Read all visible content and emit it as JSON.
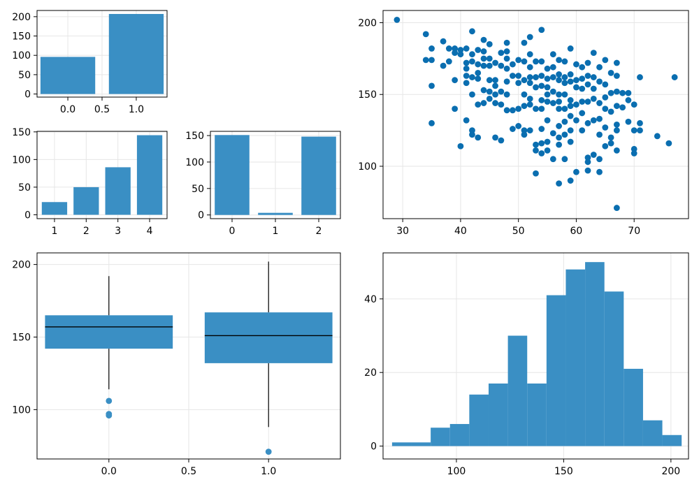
{
  "colors": {
    "bar": "#3a8fc4",
    "point": "#0a6eb0"
  },
  "chart_data": [
    {
      "id": "sex-bar",
      "type": "bar",
      "x": [
        0,
        1
      ],
      "values": [
        96,
        207
      ],
      "xlim": [
        -0.45,
        1.45
      ],
      "ylim": [
        -8,
        216
      ],
      "xticks": [
        0.0,
        0.5,
        1.0
      ],
      "xtick_labels": [
        "0.0",
        "0.5",
        "1.0"
      ],
      "yticks": [
        0,
        50,
        100,
        150,
        200
      ],
      "ytick_labels": [
        "0",
        "50",
        "100",
        "150",
        "200"
      ],
      "bar_width": 0.8,
      "grid": true
    },
    {
      "id": "cp-bar",
      "type": "bar",
      "x": [
        1,
        2,
        3,
        4
      ],
      "values": [
        23,
        50,
        86,
        144
      ],
      "xlim": [
        0.45,
        4.55
      ],
      "ylim": [
        -7,
        151
      ],
      "xticks": [
        1,
        2,
        3,
        4
      ],
      "xtick_labels": [
        "1",
        "2",
        "3",
        "4"
      ],
      "yticks": [
        0,
        50,
        100,
        150
      ],
      "ytick_labels": [
        "0",
        "50",
        "100",
        "150"
      ],
      "bar_width": 0.8,
      "grid": true
    },
    {
      "id": "restecg-bar",
      "type": "bar",
      "x": [
        0,
        1,
        2
      ],
      "values": [
        151,
        4,
        148
      ],
      "xlim": [
        -0.5,
        2.5
      ],
      "ylim": [
        -7,
        158
      ],
      "xticks": [
        0,
        1,
        2
      ],
      "xtick_labels": [
        "0",
        "1",
        "2"
      ],
      "yticks": [
        0,
        50,
        100,
        150
      ],
      "ytick_labels": [
        "0",
        "50",
        "100",
        "150"
      ],
      "bar_width": 0.8,
      "grid": true
    },
    {
      "id": "age-thalach-scatter",
      "type": "scatter",
      "xlim": [
        26.6,
        79.4
      ],
      "ylim": [
        63.5,
        208.5
      ],
      "xticks": [
        30,
        40,
        50,
        60,
        70
      ],
      "xtick_labels": [
        "30",
        "40",
        "50",
        "60",
        "70"
      ],
      "yticks": [
        100,
        150,
        200
      ],
      "ytick_labels": [
        "100",
        "150",
        "200"
      ],
      "grid": true,
      "points": [
        [
          29,
          202
        ],
        [
          34,
          192
        ],
        [
          34,
          174
        ],
        [
          35,
          182
        ],
        [
          35,
          174
        ],
        [
          35,
          156
        ],
        [
          35,
          130
        ],
        [
          37,
          187
        ],
        [
          37,
          170
        ],
        [
          38,
          182
        ],
        [
          38,
          173
        ],
        [
          39,
          182
        ],
        [
          39,
          179
        ],
        [
          39,
          160
        ],
        [
          39,
          140
        ],
        [
          40,
          181
        ],
        [
          40,
          178
        ],
        [
          40,
          114
        ],
        [
          41,
          182
        ],
        [
          41,
          172
        ],
        [
          41,
          168
        ],
        [
          41,
          163
        ],
        [
          41,
          158
        ],
        [
          41,
          132
        ],
        [
          42,
          194
        ],
        [
          42,
          178
        ],
        [
          42,
          173
        ],
        [
          42,
          162
        ],
        [
          42,
          150
        ],
        [
          42,
          125
        ],
        [
          42,
          122
        ],
        [
          43,
          181
        ],
        [
          43,
          171
        ],
        [
          43,
          165
        ],
        [
          43,
          161
        ],
        [
          43,
          143
        ],
        [
          43,
          120
        ],
        [
          44,
          188
        ],
        [
          44,
          180
        ],
        [
          44,
          175
        ],
        [
          44,
          170
        ],
        [
          44,
          153
        ],
        [
          44,
          144
        ],
        [
          45,
          185
        ],
        [
          45,
          175
        ],
        [
          45,
          170
        ],
        [
          45,
          160
        ],
        [
          45,
          152
        ],
        [
          45,
          147
        ],
        [
          46,
          172
        ],
        [
          46,
          160
        ],
        [
          46,
          156
        ],
        [
          46,
          150
        ],
        [
          46,
          144
        ],
        [
          46,
          120
        ],
        [
          47,
          179
        ],
        [
          47,
          170
        ],
        [
          47,
          152
        ],
        [
          47,
          143
        ],
        [
          47,
          118
        ],
        [
          48,
          186
        ],
        [
          48,
          180
        ],
        [
          48,
          175
        ],
        [
          48,
          168
        ],
        [
          48,
          159
        ],
        [
          48,
          150
        ],
        [
          48,
          139
        ],
        [
          49,
          171
        ],
        [
          49,
          163
        ],
        [
          49,
          139
        ],
        [
          49,
          126
        ],
        [
          50,
          174
        ],
        [
          50,
          163
        ],
        [
          50,
          158
        ],
        [
          50,
          140
        ],
        [
          50,
          128
        ],
        [
          51,
          186
        ],
        [
          51,
          173
        ],
        [
          51,
          160
        ],
        [
          51,
          150
        ],
        [
          51,
          142
        ],
        [
          51,
          125
        ],
        [
          51,
          122
        ],
        [
          52,
          190
        ],
        [
          52,
          178
        ],
        [
          52,
          169
        ],
        [
          52,
          162
        ],
        [
          52,
          158
        ],
        [
          52,
          147
        ],
        [
          52,
          143
        ],
        [
          52,
          125
        ],
        [
          53,
          173
        ],
        [
          53,
          162
        ],
        [
          53,
          155
        ],
        [
          53,
          140
        ],
        [
          53,
          115
        ],
        [
          53,
          111
        ],
        [
          53,
          95
        ],
        [
          54,
          195
        ],
        [
          54,
          173
        ],
        [
          54,
          163
        ],
        [
          54,
          156
        ],
        [
          54,
          146
        ],
        [
          54,
          140
        ],
        [
          54,
          126
        ],
        [
          54,
          116
        ],
        [
          54,
          109
        ],
        [
          55,
          168
        ],
        [
          55,
          161
        ],
        [
          55,
          155
        ],
        [
          55,
          150
        ],
        [
          55,
          145
        ],
        [
          55,
          132
        ],
        [
          55,
          117
        ],
        [
          55,
          111
        ],
        [
          56,
          178
        ],
        [
          56,
          169
        ],
        [
          56,
          162
        ],
        [
          56,
          152
        ],
        [
          56,
          144
        ],
        [
          56,
          123
        ],
        [
          56,
          105
        ],
        [
          57,
          174
        ],
        [
          57,
          164
        ],
        [
          57,
          160
        ],
        [
          57,
          150
        ],
        [
          57,
          145
        ],
        [
          57,
          140
        ],
        [
          57,
          128
        ],
        [
          57,
          120
        ],
        [
          57,
          115
        ],
        [
          57,
          88
        ],
        [
          58,
          173
        ],
        [
          58,
          162
        ],
        [
          58,
          158
        ],
        [
          58,
          150
        ],
        [
          58,
          140
        ],
        [
          58,
          131
        ],
        [
          58,
          122
        ],
        [
          58,
          105
        ],
        [
          59,
          182
        ],
        [
          59,
          164
        ],
        [
          59,
          159
        ],
        [
          59,
          146
        ],
        [
          59,
          142
        ],
        [
          59,
          135
        ],
        [
          59,
          125
        ],
        [
          59,
          117
        ],
        [
          59,
          90
        ],
        [
          60,
          171
        ],
        [
          60,
          160
        ],
        [
          60,
          155
        ],
        [
          60,
          143
        ],
        [
          60,
          132
        ],
        [
          60,
          96
        ],
        [
          61,
          169
        ],
        [
          61,
          161
        ],
        [
          61,
          154
        ],
        [
          61,
          145
        ],
        [
          61,
          137
        ],
        [
          61,
          125
        ],
        [
          62,
          172
        ],
        [
          62,
          163
        ],
        [
          62,
          157
        ],
        [
          62,
          145
        ],
        [
          62,
          130
        ],
        [
          62,
          106
        ],
        [
          62,
          103
        ],
        [
          62,
          97
        ],
        [
          63,
          179
        ],
        [
          63,
          162
        ],
        [
          63,
          154
        ],
        [
          63,
          147
        ],
        [
          63,
          132
        ],
        [
          63,
          108
        ],
        [
          64,
          169
        ],
        [
          64,
          159
        ],
        [
          64,
          144
        ],
        [
          64,
          133
        ],
        [
          64,
          122
        ],
        [
          64,
          105
        ],
        [
          64,
          96
        ],
        [
          65,
          174
        ],
        [
          65,
          157
        ],
        [
          65,
          148
        ],
        [
          65,
          140
        ],
        [
          65,
          127
        ],
        [
          65,
          114
        ],
        [
          66,
          165
        ],
        [
          66,
          151
        ],
        [
          66,
          138
        ],
        [
          66,
          120
        ],
        [
          66,
          116
        ],
        [
          67,
          172
        ],
        [
          67,
          163
        ],
        [
          67,
          152
        ],
        [
          67,
          142
        ],
        [
          67,
          129
        ],
        [
          67,
          125
        ],
        [
          67,
          111
        ],
        [
          67,
          71
        ],
        [
          68,
          151
        ],
        [
          68,
          141
        ],
        [
          69,
          151
        ],
        [
          69,
          146
        ],
        [
          69,
          131
        ],
        [
          70,
          143
        ],
        [
          70,
          125
        ],
        [
          70,
          112
        ],
        [
          70,
          109
        ],
        [
          71,
          162
        ],
        [
          71,
          130
        ],
        [
          71,
          125
        ],
        [
          74,
          121
        ],
        [
          76,
          116
        ],
        [
          77,
          162
        ]
      ]
    },
    {
      "id": "sex-thalach-boxplot",
      "type": "boxplot",
      "xlim": [
        -0.45,
        1.45
      ],
      "ylim": [
        66,
        208
      ],
      "xticks": [
        0.0,
        0.5,
        1.0
      ],
      "xtick_labels": [
        "0.0",
        "0.5",
        "1.0"
      ],
      "yticks": [
        100,
        150,
        200
      ],
      "ytick_labels": [
        "100",
        "150",
        "200"
      ],
      "grid": true,
      "boxes": [
        {
          "x": 0,
          "q1": 142,
          "median": 157,
          "q3": 165,
          "whisker_low": 114,
          "whisker_high": 192,
          "outliers": [
            106,
            97,
            96
          ]
        },
        {
          "x": 1,
          "q1": 132,
          "median": 151,
          "q3": 167,
          "whisker_low": 88,
          "whisker_high": 202,
          "outliers": [
            71
          ]
        }
      ],
      "box_width": 0.8
    },
    {
      "id": "thalach-histogram",
      "type": "histogram",
      "xlim": [
        65.8,
        208.2
      ],
      "ylim": [
        -3.5,
        52.5
      ],
      "xticks": [
        100,
        150,
        200
      ],
      "xtick_labels": [
        "100",
        "150",
        "200"
      ],
      "yticks": [
        0,
        20,
        40
      ],
      "ytick_labels": [
        "0",
        "20",
        "40"
      ],
      "grid": true,
      "bin_edges": [
        70,
        79,
        88,
        97,
        106,
        115,
        124,
        133,
        142,
        151,
        160,
        169,
        178,
        187,
        196,
        205
      ],
      "counts": [
        1,
        1,
        5,
        6,
        14,
        17,
        30,
        17,
        41,
        48,
        50,
        42,
        21,
        7,
        3
      ]
    }
  ]
}
